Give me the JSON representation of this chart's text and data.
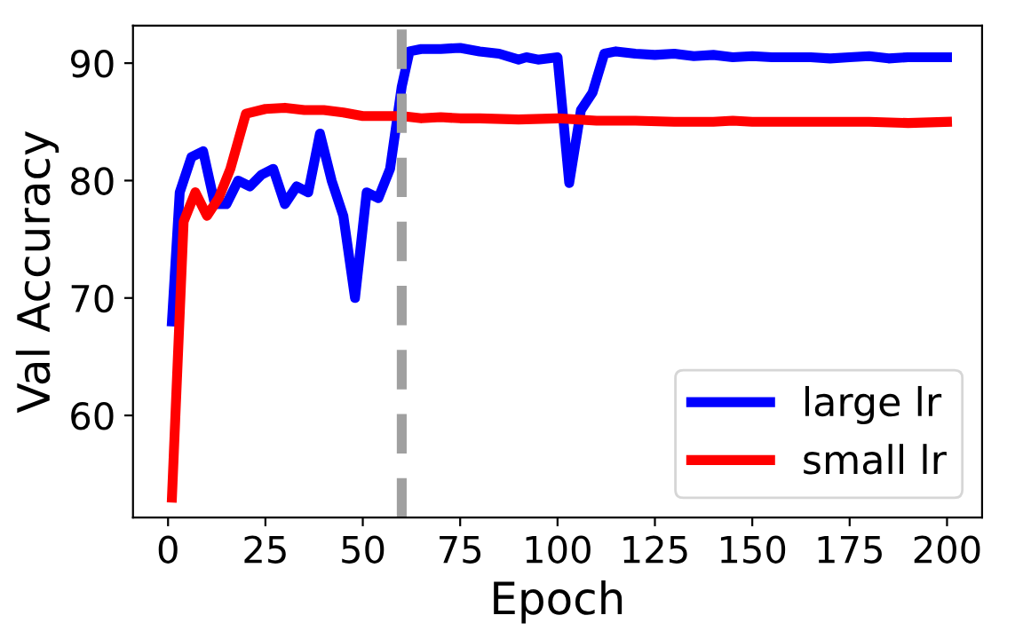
{
  "chart_data": {
    "type": "line",
    "xlabel": "Epoch",
    "ylabel": "Val Accuracy",
    "xlim": [
      -9,
      209
    ],
    "ylim": [
      51.3,
      93.2
    ],
    "xticks": [
      0,
      25,
      50,
      75,
      100,
      125,
      150,
      175,
      200
    ],
    "yticks": [
      60,
      70,
      80,
      90
    ],
    "legend": "bottom right",
    "grid": false,
    "line_style": "solid",
    "marker": "none",
    "ref_lines": [
      {
        "axis": "x",
        "value": 60,
        "color": "#a0a0a0",
        "line_style": "dashed"
      }
    ],
    "series": [
      {
        "name": "large lr",
        "color": "#0000ff",
        "x": [
          1,
          3,
          6,
          9,
          12,
          15,
          18,
          21,
          24,
          27,
          30,
          33,
          36,
          39,
          42,
          45,
          48,
          51,
          54,
          57,
          60,
          62,
          65,
          70,
          75,
          80,
          85,
          90,
          92,
          95,
          100,
          103,
          106,
          109,
          112,
          115,
          120,
          125,
          130,
          135,
          140,
          145,
          150,
          155,
          160,
          165,
          170,
          175,
          180,
          185,
          190,
          195,
          200
        ],
        "values": [
          68,
          79,
          82,
          82.5,
          78,
          78,
          80,
          79.5,
          80.5,
          81,
          78,
          79.5,
          79,
          84,
          80,
          77,
          70,
          79,
          78.5,
          81,
          88,
          91,
          91.2,
          91.2,
          91.3,
          91,
          90.8,
          90.3,
          90.5,
          90.3,
          90.5,
          79.8,
          86,
          87.5,
          90.8,
          91,
          90.8,
          90.7,
          90.8,
          90.6,
          90.7,
          90.5,
          90.6,
          90.5,
          90.5,
          90.5,
          90.4,
          90.5,
          90.6,
          90.4,
          90.5,
          90.5,
          90.5
        ]
      },
      {
        "name": "small lr",
        "color": "#ff0000",
        "x": [
          1,
          4,
          7,
          10,
          13,
          16,
          20,
          25,
          30,
          35,
          40,
          45,
          50,
          55,
          60,
          65,
          70,
          75,
          80,
          90,
          100,
          110,
          120,
          130,
          140,
          145,
          150,
          160,
          170,
          180,
          190,
          200
        ],
        "values": [
          53,
          76.5,
          79,
          77,
          78.5,
          81,
          85.7,
          86.1,
          86.2,
          86,
          86,
          85.8,
          85.5,
          85.5,
          85.5,
          85.3,
          85.4,
          85.3,
          85.3,
          85.2,
          85.3,
          85.1,
          85.1,
          85.0,
          85,
          85.1,
          85.0,
          85.0,
          85.0,
          85.0,
          84.9,
          85.0
        ]
      }
    ]
  }
}
